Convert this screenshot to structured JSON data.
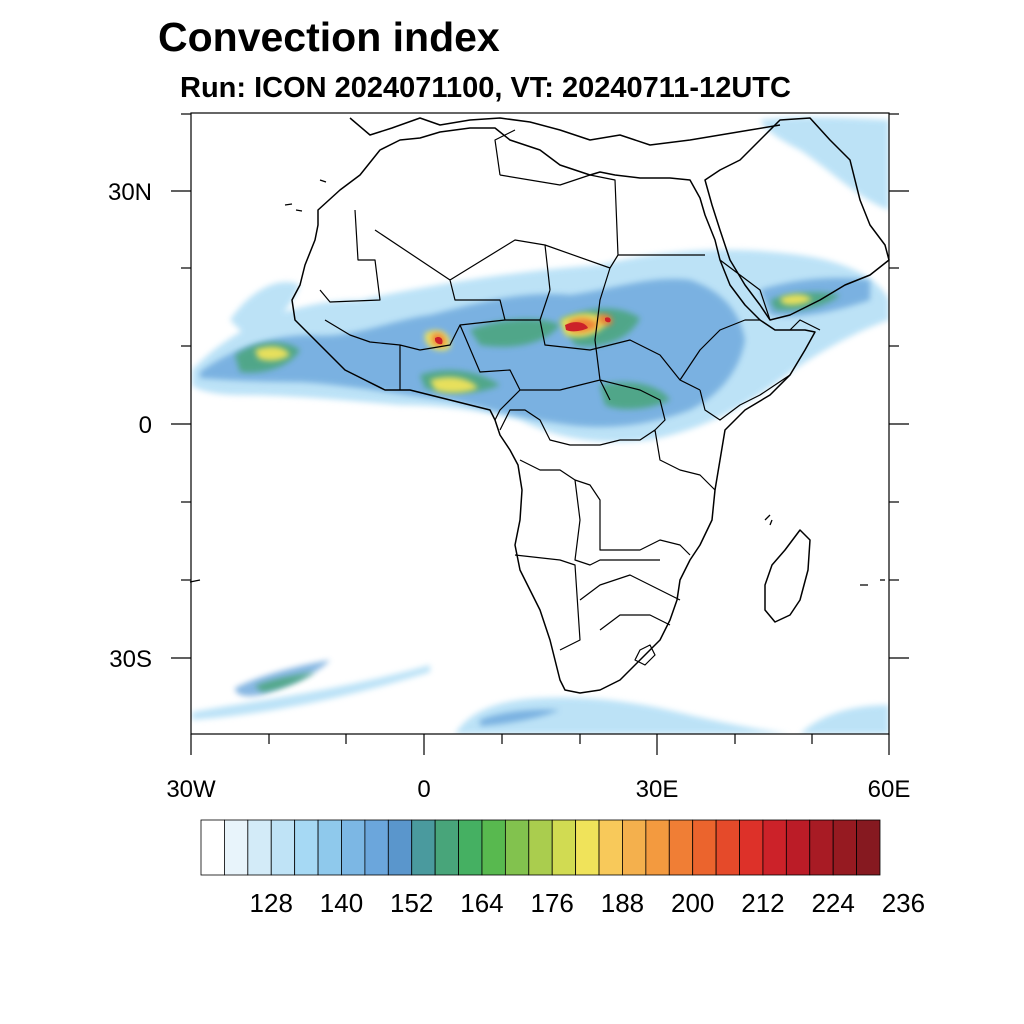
{
  "title": "Convection index",
  "subtitle": "Run: ICON 2024071100,  VT: 20240711-12UTC",
  "map": {
    "region": "Africa",
    "lat_ticks": [
      "30N",
      "0",
      "30S"
    ],
    "lon_ticks": [
      "30W",
      "0",
      "30E",
      "60E"
    ]
  },
  "colorbar": {
    "labels": [
      "128",
      "140",
      "152",
      "164",
      "176",
      "188",
      "200",
      "212",
      "224",
      "236"
    ],
    "colors": [
      "#ffffff",
      "#e8f4fb",
      "#d3ebf8",
      "#bfe3f6",
      "#a6d9f4",
      "#8fc9ec",
      "#7cb7e4",
      "#6ba6dc",
      "#5a96cc",
      "#4a9a9e",
      "#48a57a",
      "#45b062",
      "#58b94f",
      "#82c24e",
      "#aacd4e",
      "#d1db52",
      "#f0e35a",
      "#f8c95a",
      "#f4b04d",
      "#f39a3f",
      "#f07e35",
      "#eb642d",
      "#e54a2a",
      "#dd3129",
      "#cc2229",
      "#bb1c27",
      "#a81b24",
      "#961a21",
      "#861920"
    ]
  }
}
